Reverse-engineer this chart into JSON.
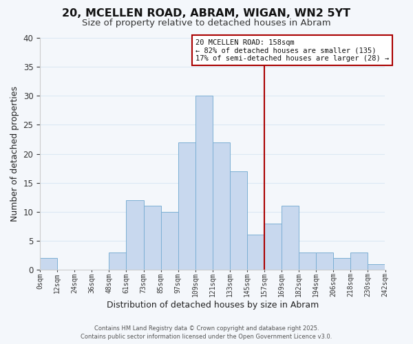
{
  "title": "20, MCELLEN ROAD, ABRAM, WIGAN, WN2 5YT",
  "subtitle": "Size of property relative to detached houses in Abram",
  "xlabel": "Distribution of detached houses by size in Abram",
  "ylabel": "Number of detached properties",
  "bar_values": [
    2,
    0,
    0,
    0,
    3,
    12,
    11,
    10,
    22,
    30,
    22,
    17,
    6,
    8,
    11,
    3,
    3,
    2,
    3,
    1
  ],
  "bin_labels": [
    "0sqm",
    "12sqm",
    "24sqm",
    "36sqm",
    "48sqm",
    "61sqm",
    "73sqm",
    "85sqm",
    "97sqm",
    "109sqm",
    "121sqm",
    "133sqm",
    "145sqm",
    "157sqm",
    "169sqm",
    "182sqm",
    "194sqm",
    "206sqm",
    "218sqm",
    "230sqm",
    "242sqm"
  ],
  "bar_color": "#c8d8ee",
  "bar_edge_color": "#7bafd4",
  "grid_color": "#dce8f4",
  "vline_x_bin": 13,
  "vline_color": "#aa0000",
  "annotation_text_line1": "20 MCELLEN ROAD: 158sqm",
  "annotation_text_line2": "← 82% of detached houses are smaller (135)",
  "annotation_text_line3": "17% of semi-detached houses are larger (28) →",
  "annotation_box_color": "#ffffff",
  "annotation_box_edge": "#aa0000",
  "ylim": [
    0,
    40
  ],
  "yticks": [
    0,
    5,
    10,
    15,
    20,
    25,
    30,
    35,
    40
  ],
  "footer": "Contains HM Land Registry data © Crown copyright and database right 2025.\nContains public sector information licensed under the Open Government Licence v3.0.",
  "bg_color": "#f4f7fb",
  "title_fontsize": 11.5,
  "subtitle_fontsize": 9.5,
  "bin_width": 12,
  "num_bins": 20
}
